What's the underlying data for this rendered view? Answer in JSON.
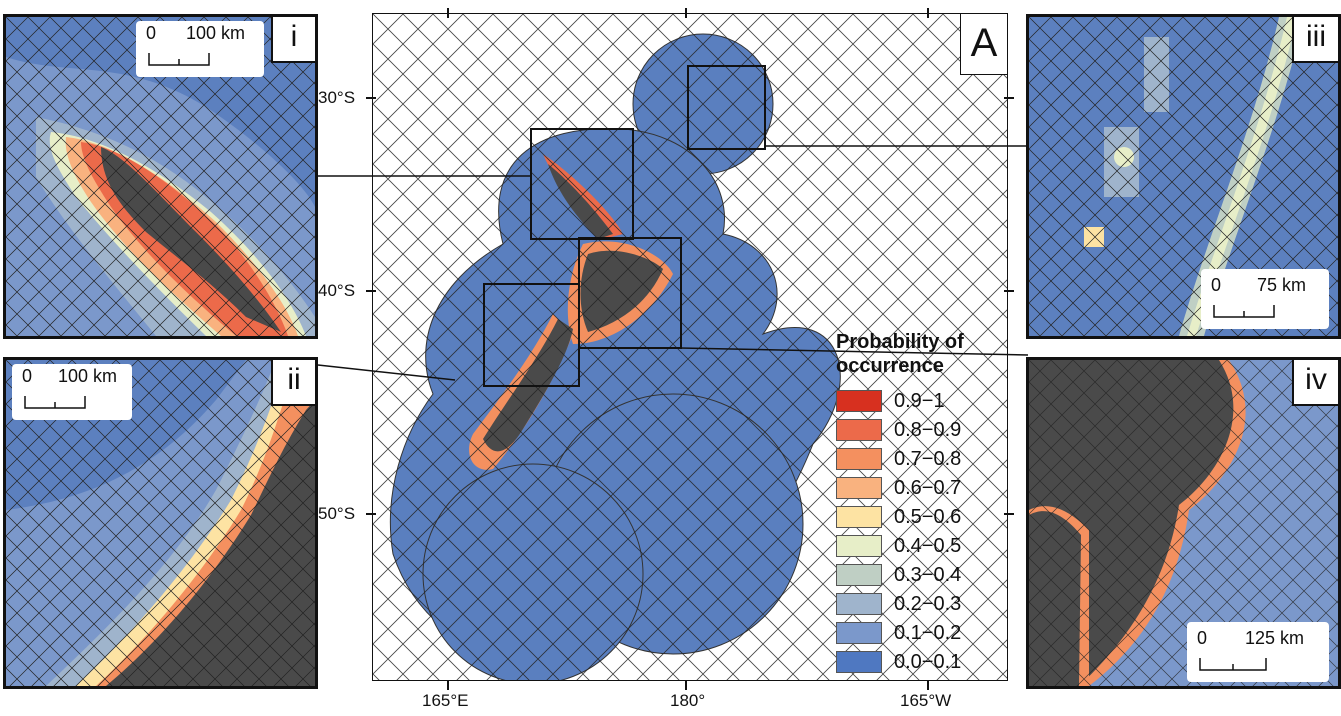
{
  "main_map": {
    "label": "A",
    "lat_ticks": [
      "30°S",
      "40°S",
      "50°S"
    ],
    "lon_ticks": [
      "165°E",
      "180°",
      "165°W"
    ]
  },
  "insets": {
    "i": {
      "label": "i",
      "scale_zero": "0",
      "scale_end": "100 km"
    },
    "ii": {
      "label": "ii",
      "scale_zero": "0",
      "scale_end": "100 km"
    },
    "iii": {
      "label": "iii",
      "scale_zero": "0",
      "scale_end": "75 km"
    },
    "iv": {
      "label": "iv",
      "scale_zero": "0",
      "scale_end": "125 km"
    }
  },
  "legend": {
    "title_line1": "Probability of",
    "title_line2": "occurrence",
    "items": [
      {
        "label": "0.9−1",
        "color": "#d7301f"
      },
      {
        "label": "0.8−0.9",
        "color": "#ec6a4a"
      },
      {
        "label": "0.7−0.8",
        "color": "#f4905f"
      },
      {
        "label": "0.6−0.7",
        "color": "#f9b27f"
      },
      {
        "label": "0.5−0.6",
        "color": "#fde3a3"
      },
      {
        "label": "0.4−0.5",
        "color": "#e7eec8"
      },
      {
        "label": "0.3−0.4",
        "color": "#bfcfc4"
      },
      {
        "label": "0.2−0.3",
        "color": "#9fb4cc"
      },
      {
        "label": "0.1−0.2",
        "color": "#7b98cb"
      },
      {
        "label": "0.0−0.1",
        "color": "#4f78c1"
      }
    ]
  }
}
